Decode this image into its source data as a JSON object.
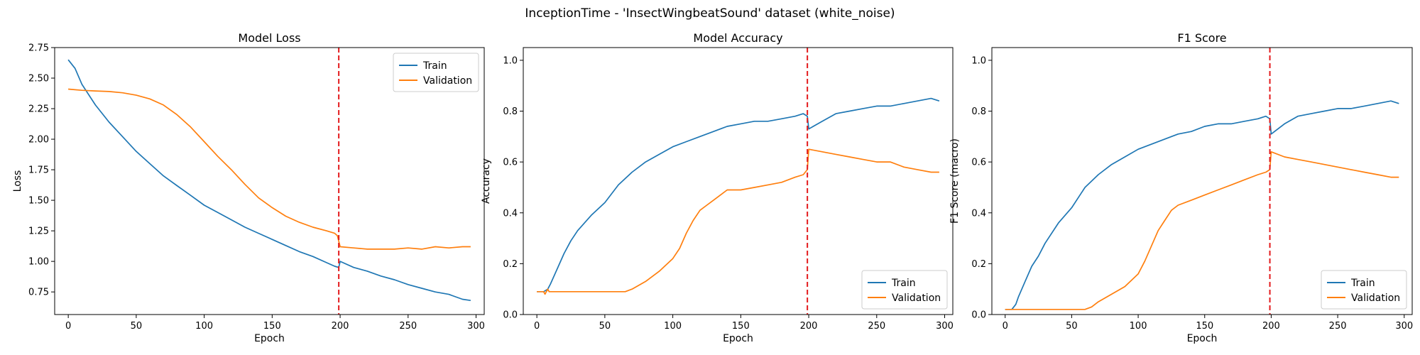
{
  "suptitle": "InceptionTime - 'InsectWingbeatSound' dataset (white_noise)",
  "chart_data": [
    {
      "type": "line",
      "title": "Model Loss",
      "xlabel": "Epoch",
      "ylabel": "Loss",
      "xlim": [
        -10,
        306
      ],
      "ylim": [
        0.565,
        2.75
      ],
      "xticks": [
        0,
        50,
        100,
        150,
        200,
        250,
        300
      ],
      "yticks": [
        0.75,
        1.0,
        1.25,
        1.5,
        1.75,
        2.0,
        2.25,
        2.5,
        2.75
      ],
      "ytick_labels": [
        "0.75",
        "1.00",
        "1.25",
        "1.50",
        "1.75",
        "2.00",
        "2.25",
        "2.50",
        "2.75"
      ],
      "vline": 199,
      "legend_position": "upper right",
      "series": [
        {
          "name": "Train",
          "color": "#1f77b4",
          "x": [
            0,
            5,
            10,
            20,
            30,
            40,
            50,
            60,
            70,
            80,
            90,
            100,
            110,
            120,
            130,
            140,
            150,
            160,
            170,
            180,
            190,
            196,
            199,
            200,
            210,
            220,
            230,
            240,
            250,
            260,
            270,
            280,
            290,
            296
          ],
          "y": [
            2.65,
            2.58,
            2.45,
            2.28,
            2.14,
            2.02,
            1.9,
            1.8,
            1.7,
            1.62,
            1.54,
            1.46,
            1.4,
            1.34,
            1.28,
            1.23,
            1.18,
            1.13,
            1.08,
            1.04,
            0.99,
            0.96,
            0.95,
            1.0,
            0.95,
            0.92,
            0.88,
            0.85,
            0.81,
            0.78,
            0.75,
            0.73,
            0.69,
            0.68
          ]
        },
        {
          "name": "Validation",
          "color": "#ff7f0e",
          "x": [
            0,
            10,
            20,
            30,
            40,
            50,
            60,
            70,
            80,
            90,
            100,
            110,
            120,
            130,
            140,
            150,
            160,
            170,
            180,
            190,
            196,
            198,
            200,
            210,
            220,
            230,
            240,
            250,
            260,
            270,
            280,
            290,
            296
          ],
          "y": [
            2.41,
            2.4,
            2.395,
            2.39,
            2.38,
            2.36,
            2.33,
            2.28,
            2.2,
            2.1,
            1.98,
            1.86,
            1.75,
            1.63,
            1.52,
            1.44,
            1.37,
            1.32,
            1.28,
            1.25,
            1.23,
            1.21,
            1.12,
            1.11,
            1.1,
            1.1,
            1.1,
            1.11,
            1.1,
            1.12,
            1.11,
            1.12,
            1.12
          ]
        }
      ]
    },
    {
      "type": "line",
      "title": "Model Accuracy",
      "xlabel": "Epoch",
      "ylabel": "Accuracy",
      "xlim": [
        -10,
        306
      ],
      "ylim": [
        0,
        1.05
      ],
      "xticks": [
        0,
        50,
        100,
        150,
        200,
        250,
        300
      ],
      "yticks": [
        0,
        0.2,
        0.4,
        0.6,
        0.8,
        1.0
      ],
      "ytick_labels": [
        "0.0",
        "0.2",
        "0.4",
        "0.6",
        "0.8",
        "1.0"
      ],
      "vline": 199,
      "legend_position": "lower right",
      "series": [
        {
          "name": "Train",
          "color": "#1f77b4",
          "x": [
            0,
            5,
            8,
            10,
            15,
            20,
            25,
            30,
            40,
            50,
            60,
            70,
            80,
            90,
            100,
            110,
            120,
            130,
            140,
            150,
            160,
            170,
            180,
            190,
            196,
            199,
            200,
            210,
            220,
            230,
            240,
            250,
            260,
            270,
            280,
            290,
            296
          ],
          "y": [
            0.09,
            0.09,
            0.1,
            0.12,
            0.18,
            0.24,
            0.29,
            0.33,
            0.39,
            0.44,
            0.51,
            0.56,
            0.6,
            0.63,
            0.66,
            0.68,
            0.7,
            0.72,
            0.74,
            0.75,
            0.76,
            0.76,
            0.77,
            0.78,
            0.79,
            0.78,
            0.73,
            0.76,
            0.79,
            0.8,
            0.81,
            0.82,
            0.82,
            0.83,
            0.84,
            0.85,
            0.84
          ]
        },
        {
          "name": "Validation",
          "color": "#ff7f0e",
          "x": [
            0,
            5,
            6,
            7,
            8,
            9,
            10,
            20,
            40,
            60,
            65,
            70,
            80,
            90,
            100,
            105,
            110,
            115,
            120,
            125,
            130,
            140,
            150,
            160,
            170,
            180,
            190,
            196,
            199,
            200,
            210,
            220,
            230,
            240,
            250,
            260,
            270,
            280,
            290,
            296
          ],
          "y": [
            0.09,
            0.09,
            0.08,
            0.09,
            0.1,
            0.09,
            0.09,
            0.09,
            0.09,
            0.09,
            0.09,
            0.1,
            0.13,
            0.17,
            0.22,
            0.26,
            0.32,
            0.37,
            0.41,
            0.43,
            0.45,
            0.49,
            0.49,
            0.5,
            0.51,
            0.52,
            0.54,
            0.55,
            0.57,
            0.65,
            0.64,
            0.63,
            0.62,
            0.61,
            0.6,
            0.6,
            0.58,
            0.57,
            0.56,
            0.56
          ]
        }
      ]
    },
    {
      "type": "line",
      "title": "F1 Score",
      "xlabel": "Epoch",
      "ylabel": "F1 Score (macro)",
      "xlim": [
        -10,
        306
      ],
      "ylim": [
        0,
        1.05
      ],
      "xticks": [
        0,
        50,
        100,
        150,
        200,
        250,
        300
      ],
      "yticks": [
        0,
        0.2,
        0.4,
        0.6,
        0.8,
        1.0
      ],
      "ytick_labels": [
        "0.0",
        "0.2",
        "0.4",
        "0.6",
        "0.8",
        "1.0"
      ],
      "vline": 199,
      "legend_position": "lower right",
      "series": [
        {
          "name": "Train",
          "color": "#1f77b4",
          "x": [
            0,
            5,
            8,
            10,
            15,
            20,
            25,
            30,
            40,
            50,
            60,
            70,
            80,
            90,
            100,
            110,
            120,
            130,
            140,
            150,
            160,
            170,
            180,
            190,
            196,
            199,
            200,
            210,
            220,
            230,
            240,
            250,
            260,
            270,
            280,
            290,
            296
          ],
          "y": [
            0.02,
            0.02,
            0.04,
            0.07,
            0.13,
            0.19,
            0.23,
            0.28,
            0.36,
            0.42,
            0.5,
            0.55,
            0.59,
            0.62,
            0.65,
            0.67,
            0.69,
            0.71,
            0.72,
            0.74,
            0.75,
            0.75,
            0.76,
            0.77,
            0.78,
            0.77,
            0.71,
            0.75,
            0.78,
            0.79,
            0.8,
            0.81,
            0.81,
            0.82,
            0.83,
            0.84,
            0.83
          ]
        },
        {
          "name": "Validation",
          "color": "#ff7f0e",
          "x": [
            0,
            10,
            20,
            40,
            60,
            65,
            70,
            80,
            90,
            100,
            105,
            110,
            115,
            120,
            125,
            130,
            140,
            150,
            160,
            170,
            180,
            190,
            196,
            199,
            200,
            210,
            220,
            230,
            240,
            250,
            260,
            270,
            280,
            290,
            296
          ],
          "y": [
            0.02,
            0.02,
            0.02,
            0.02,
            0.02,
            0.03,
            0.05,
            0.08,
            0.11,
            0.16,
            0.21,
            0.27,
            0.33,
            0.37,
            0.41,
            0.43,
            0.45,
            0.47,
            0.49,
            0.51,
            0.53,
            0.55,
            0.56,
            0.57,
            0.64,
            0.62,
            0.61,
            0.6,
            0.59,
            0.58,
            0.57,
            0.56,
            0.55,
            0.54,
            0.54
          ]
        }
      ]
    }
  ]
}
